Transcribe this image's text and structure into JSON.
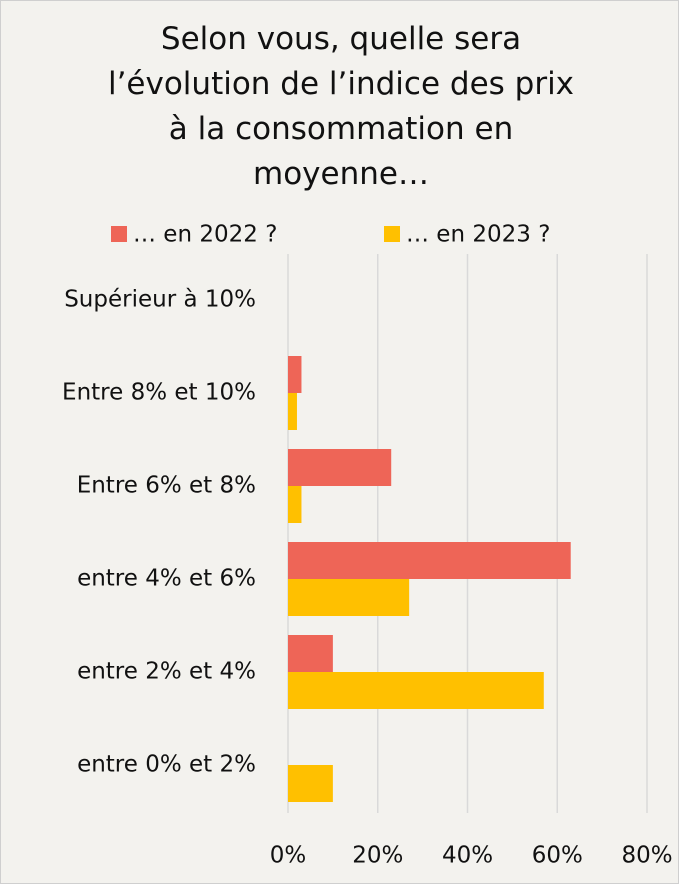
{
  "chart_data": {
    "type": "bar",
    "orientation": "horizontal",
    "title": "Selon vous, quelle sera l’évolution de l’indice des prix à la consommation en moyenne…",
    "categories": [
      "Supérieur à 10%",
      "Entre 8% et 10%",
      "Entre 6% et 8%",
      "entre 4% et 6%",
      "entre 2% et 4%",
      "entre 0% et 2%"
    ],
    "series": [
      {
        "name": "… en 2022 ?",
        "color": "#ee6557",
        "values": [
          0,
          3,
          23,
          63,
          10,
          0
        ]
      },
      {
        "name": "… en 2023 ?",
        "color": "#ffc000",
        "values": [
          0,
          2,
          3,
          27,
          57,
          10
        ]
      }
    ],
    "xlim": [
      0,
      80
    ],
    "xticks": [
      {
        "value": 0,
        "label": "0%"
      },
      {
        "value": 20,
        "label": "20%"
      },
      {
        "value": 40,
        "label": "40%"
      },
      {
        "value": 60,
        "label": "60%"
      },
      {
        "value": 80,
        "label": "80%"
      }
    ],
    "grid": true,
    "legend": "top"
  }
}
